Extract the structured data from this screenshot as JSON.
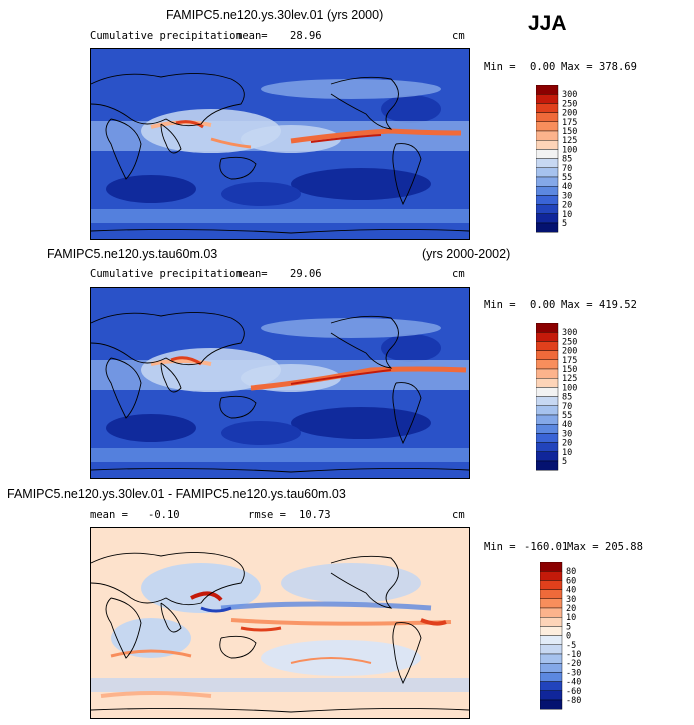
{
  "season": "JJA",
  "units": "cm",
  "panel1": {
    "title": "FAMIPC5.ne120.ys.30lev.01 (yrs 2000)",
    "subtitle": "Cumulative precipitation",
    "mean_label": "mean=",
    "mean_value": "28.96",
    "min_label": "Min =",
    "min_value": "0.00",
    "max_label": "Max =",
    "max_value": "378.69"
  },
  "panel2": {
    "title_left": "FAMIPC5.ne120.ys.tau60m.03",
    "title_right": "(yrs 2000-2002)",
    "subtitle": "Cumulative precipitation",
    "mean_label": "mean=",
    "mean_value": "29.06",
    "min_label": "Min =",
    "min_value": "0.00",
    "max_label": "Max =",
    "max_value": "419.52"
  },
  "panel3": {
    "title": "FAMIPC5.ne120.ys.30lev.01 - FAMIPC5.ne120.ys.tau60m.03",
    "mean_label": "mean =",
    "mean_value": "-0.10",
    "rmse_label": "rmse =",
    "rmse_value": "10.73",
    "min_label": "Min =",
    "min_value": "-160.01",
    "max_label": "Max =",
    "max_value": "205.88"
  },
  "precip_colorbar": {
    "levels": [
      "300",
      "250",
      "200",
      "175",
      "150",
      "125",
      "100",
      "85",
      "70",
      "55",
      "40",
      "30",
      "20",
      "10",
      "5"
    ],
    "colors": [
      "#8b0000",
      "#c41a0a",
      "#e0401c",
      "#ef6a3a",
      "#f88e5c",
      "#fcb38c",
      "#fdd4b8",
      "#f2f2f2",
      "#c7d8f2",
      "#a6c2ee",
      "#84a8e8",
      "#5c88e0",
      "#3a64d6",
      "#2244bc",
      "#10269a",
      "#041270"
    ]
  },
  "diff_colorbar": {
    "levels": [
      "80",
      "60",
      "40",
      "30",
      "20",
      "10",
      "5",
      "0",
      "-5",
      "-10",
      "-20",
      "-30",
      "-40",
      "-60",
      "-80"
    ],
    "colors": [
      "#8b0000",
      "#c41a0a",
      "#e0401c",
      "#ef6a3a",
      "#f88e5c",
      "#fcb38c",
      "#fdd4b8",
      "#fdeede",
      "#e2ecf8",
      "#c7d8f2",
      "#a6c2ee",
      "#84a8e8",
      "#5c88e0",
      "#2244bc",
      "#10269a",
      "#041270"
    ]
  },
  "map_fills": {
    "precip_ocean": "#2a52c8",
    "precip_dry": "#102a9c",
    "precip_wet": "#a8c4ee",
    "itcz": "#f06a3a",
    "diff_background": "#fde2cc",
    "diff_blue": "#c0d6f4"
  }
}
